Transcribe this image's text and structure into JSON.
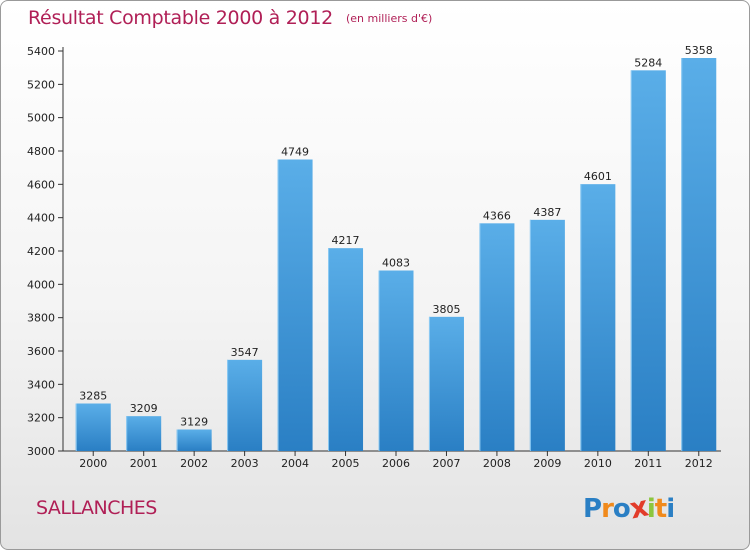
{
  "chart_data": {
    "type": "bar",
    "title": "Résultat Comptable 2000 à 2012",
    "subtitle": "(en milliers d'€)",
    "categories": [
      "2000",
      "2001",
      "2002",
      "2003",
      "2004",
      "2005",
      "2006",
      "2007",
      "2008",
      "2009",
      "2010",
      "2011",
      "2012"
    ],
    "values": [
      3285,
      3209,
      3129,
      3547,
      4749,
      4217,
      4083,
      3805,
      4366,
      4387,
      4601,
      5284,
      5358
    ],
    "ylim": [
      3000,
      5400
    ],
    "yticks": [
      3000,
      3200,
      3400,
      3600,
      3800,
      4000,
      4200,
      4400,
      4600,
      4800,
      5000,
      5200,
      5400
    ],
    "grid": false,
    "bar_color_top": "#5aaee8",
    "bar_color_bottom": "#2a7fc4"
  },
  "location": "SALLANCHES",
  "logo": {
    "letters": [
      "P",
      "r",
      "o",
      "x",
      "i",
      "t",
      "i"
    ],
    "colors": [
      "#2a7fc4",
      "#f08a1c",
      "#2a7fc4",
      "#e23c2a",
      "#8cc63e",
      "#f08a1c",
      "#2a7fc4"
    ]
  },
  "colors": {
    "accent": "#b01f56",
    "axis": "#333333"
  }
}
